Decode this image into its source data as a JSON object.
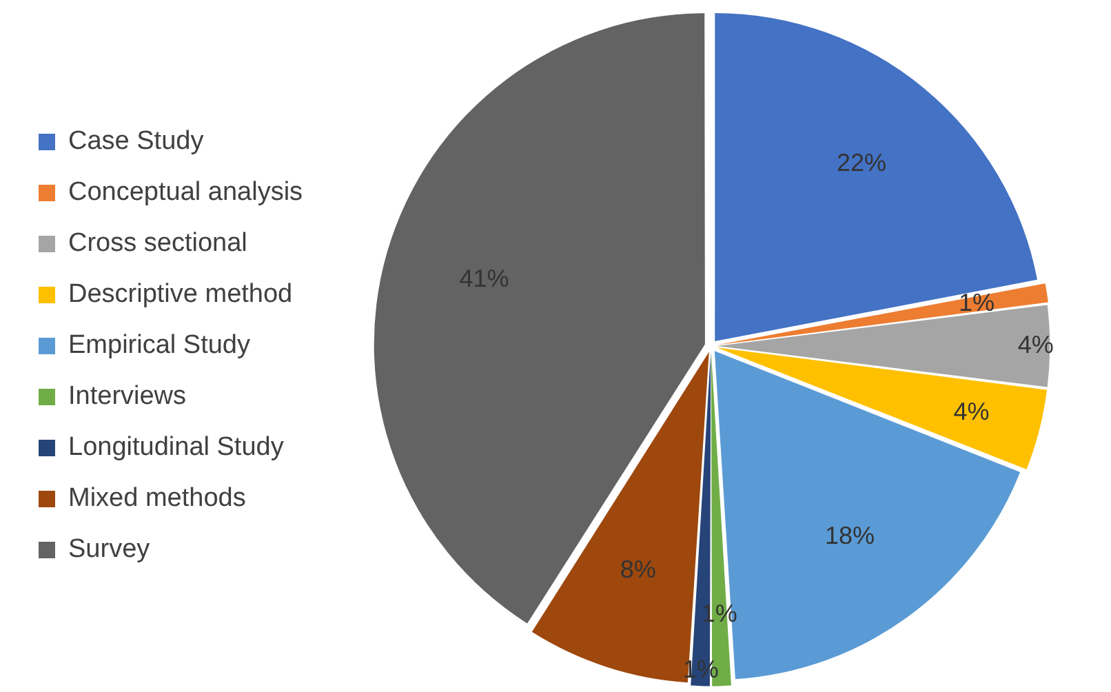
{
  "chart_data": {
    "type": "pie",
    "categories": [
      "Case Study",
      "Conceptual analysis",
      "Cross sectional",
      "Descriptive method",
      "Empirical Study",
      "Interviews",
      "Longitudinal Study",
      "Mixed methods",
      "Survey"
    ],
    "values": [
      22,
      1,
      4,
      4,
      18,
      1,
      1,
      8,
      41
    ],
    "colors": [
      "#4472c4",
      "#ed7d31",
      "#a5a5a5",
      "#ffc000",
      "#5b9bd5",
      "#70ad47",
      "#264478",
      "#9e480e",
      "#636363"
    ],
    "value_labels": [
      "22%",
      "1%",
      "4%",
      "4%",
      "18%",
      "1%",
      "1%",
      "8%",
      "41%"
    ],
    "legend": "left"
  }
}
